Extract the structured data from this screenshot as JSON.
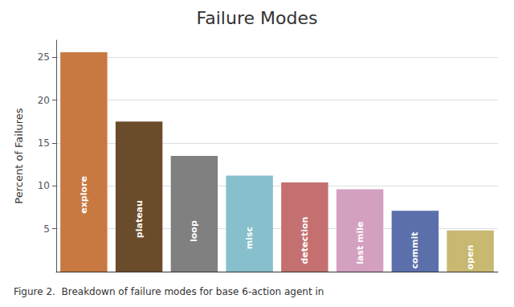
{
  "chart_data": {
    "type": "bar",
    "title": "Failure Modes",
    "ylabel": "Percent of Failures",
    "caption": "Figure 2.  Breakdown of failure modes for base 6-action agent in",
    "categories": [
      "explore",
      "plateau",
      "loop",
      "misc",
      "detection",
      "last mile",
      "commit",
      "open"
    ],
    "values": [
      25.6,
      17.5,
      13.5,
      11.2,
      10.4,
      9.6,
      7.1,
      4.8
    ],
    "colors": [
      "#c87941",
      "#6b4c2a",
      "#808080",
      "#87bfcc",
      "#c47070",
      "#d4a0c0",
      "#5b6faa",
      "#c8b870"
    ],
    "ylim": [
      0,
      27
    ],
    "yticks": [
      5,
      10,
      15,
      20,
      25
    ],
    "grid": true,
    "tick_labels": "y"
  }
}
